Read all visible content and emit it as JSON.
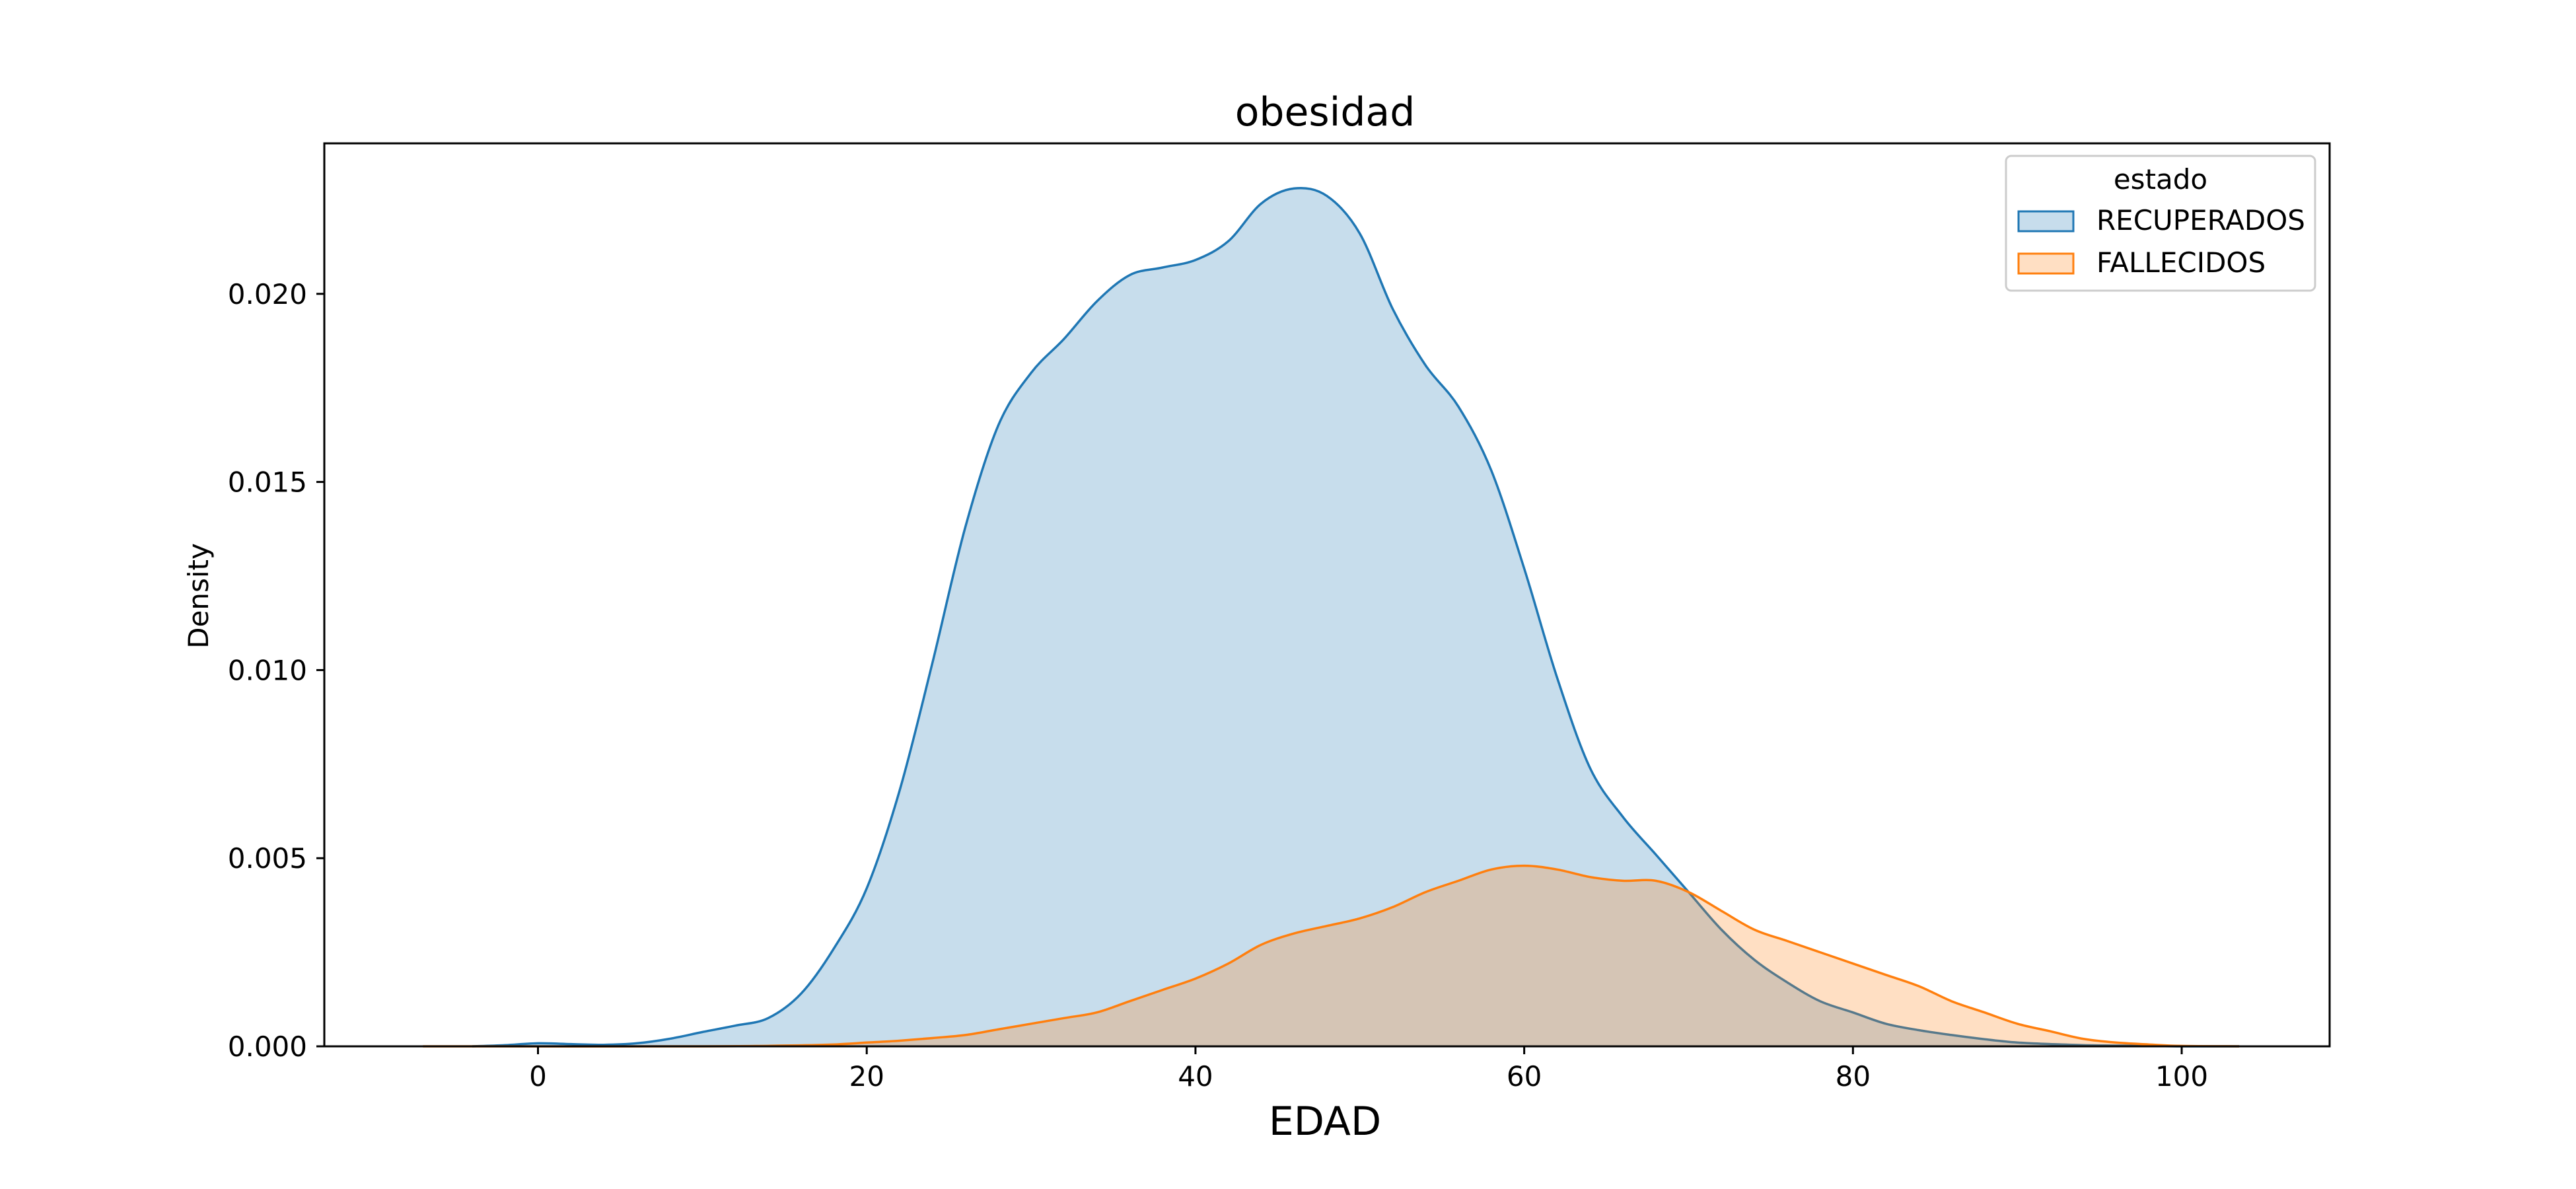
{
  "chart_data": {
    "type": "area",
    "title": "obesidad",
    "xlabel": "EDAD",
    "ylabel": "Density",
    "xlim": [
      -13,
      109
    ],
    "ylim": [
      0,
      0.024
    ],
    "grid": false,
    "x_ticks": [
      0,
      20,
      40,
      60,
      80,
      100
    ],
    "x_tick_labels": [
      "0",
      "20",
      "40",
      "60",
      "80",
      "100"
    ],
    "y_ticks": [
      0,
      0.005,
      0.01,
      0.015,
      0.02
    ],
    "y_tick_labels": [
      "0.000",
      "0.005",
      "0.010",
      "0.015",
      "0.020"
    ],
    "legend": {
      "title": "estado",
      "position": "top-right",
      "entries": [
        "RECUPERADOS",
        "FALLECIDOS"
      ]
    },
    "series": [
      {
        "name": "RECUPERADOS",
        "stroke": "#1f77b4",
        "fill": "#1f77b4",
        "fill_opacity": 0.25,
        "x": [
          -4,
          -2,
          0,
          2,
          4,
          6,
          8,
          10,
          12,
          14,
          16,
          18,
          20,
          22,
          24,
          26,
          28,
          30,
          32,
          34,
          36,
          38,
          40,
          42,
          44,
          46,
          48,
          50,
          52,
          54,
          56,
          58,
          60,
          62,
          64,
          66,
          68,
          70,
          72,
          74,
          76,
          78,
          80,
          82,
          84,
          86,
          88,
          90,
          92,
          94,
          96,
          98,
          100,
          103.5
        ],
        "y": [
          0.0,
          3e-05,
          8e-05,
          6e-05,
          4e-05,
          8e-05,
          0.0002,
          0.00038,
          0.00055,
          0.00075,
          0.0014,
          0.0026,
          0.0042,
          0.0068,
          0.0102,
          0.0138,
          0.0165,
          0.0179,
          0.0188,
          0.0198,
          0.0205,
          0.0207,
          0.0209,
          0.0214,
          0.0224,
          0.0228,
          0.0226,
          0.0216,
          0.0196,
          0.0181,
          0.017,
          0.0153,
          0.0127,
          0.0098,
          0.0074,
          0.0061,
          0.0051,
          0.0041,
          0.0031,
          0.0023,
          0.0017,
          0.0012,
          0.0009,
          0.0006,
          0.00043,
          0.0003,
          0.00019,
          0.0001,
          6e-05,
          3e-05,
          2e-05,
          1e-05,
          0.0,
          0.0
        ]
      },
      {
        "name": "FALLECIDOS",
        "stroke": "#ff7f0e",
        "fill": "#ff7f0e",
        "fill_opacity": 0.25,
        "x": [
          -7,
          10,
          15,
          18,
          20,
          22,
          24,
          26,
          28,
          30,
          32,
          34,
          36,
          38,
          40,
          42,
          44,
          46,
          48,
          50,
          52,
          54,
          56,
          58,
          60,
          62,
          64,
          66,
          68,
          70,
          72,
          74,
          76,
          78,
          80,
          82,
          84,
          86,
          88,
          90,
          92,
          94,
          96,
          98,
          100,
          103.5
        ],
        "y": [
          0.0,
          0.0,
          2e-05,
          5e-05,
          0.0001,
          0.00015,
          0.00022,
          0.0003,
          0.00045,
          0.0006,
          0.00075,
          0.0009,
          0.0012,
          0.0015,
          0.0018,
          0.0022,
          0.0027,
          0.003,
          0.0032,
          0.0034,
          0.0037,
          0.0041,
          0.0044,
          0.0047,
          0.0048,
          0.0047,
          0.0045,
          0.0044,
          0.0044,
          0.0041,
          0.0036,
          0.0031,
          0.0028,
          0.0025,
          0.0022,
          0.0019,
          0.0016,
          0.0012,
          0.0009,
          0.0006,
          0.0004,
          0.0002,
          0.0001,
          5e-05,
          1e-05,
          0.0
        ]
      }
    ]
  }
}
